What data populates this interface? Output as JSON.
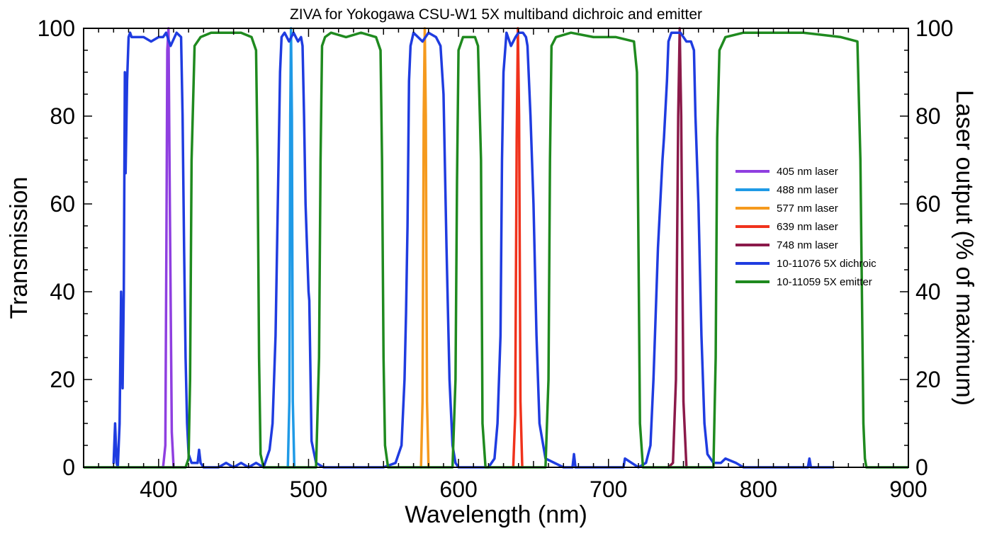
{
  "chart_data": {
    "type": "line",
    "title": "ZIVA for Yokogawa CSU-W1 5X multiband dichroic and emitter",
    "xlabel": "Wavelength (nm)",
    "ylabel": "Transmission",
    "y2label": "Laser output (% of maximum)",
    "xlim": [
      350,
      900
    ],
    "ylim": [
      0,
      100
    ],
    "y2lim": [
      0,
      100
    ],
    "x_ticks": [
      400,
      500,
      600,
      700,
      800,
      900
    ],
    "y_ticks": [
      0,
      20,
      40,
      60,
      80,
      100
    ],
    "y2_ticks": [
      0,
      20,
      40,
      60,
      80,
      100
    ],
    "grid": false,
    "legend_position": "right",
    "series": [
      {
        "name": "405 nm laser",
        "axis": "right",
        "color": "#8f3fe0",
        "x": [
          403,
          404.5,
          405.2,
          405.8,
          406.6,
          407.5,
          408.8,
          410
        ],
        "y": [
          0,
          5,
          50,
          95,
          100,
          60,
          8,
          0
        ]
      },
      {
        "name": "488 nm laser",
        "axis": "right",
        "color": "#1f9ae6",
        "x": [
          486.2,
          487.2,
          487.8,
          488.3,
          488.9,
          489.5,
          490.5
        ],
        "y": [
          0,
          15,
          80,
          100,
          80,
          15,
          0
        ]
      },
      {
        "name": "577 nm laser",
        "axis": "right",
        "color": "#f59a1e",
        "x": [
          575,
          576,
          576.8,
          577.5,
          578.2,
          579,
          580
        ],
        "y": [
          0,
          15,
          80,
          100,
          80,
          15,
          0
        ]
      },
      {
        "name": "639 nm laser",
        "axis": "right",
        "color": "#f0321c",
        "x": [
          636.5,
          637.8,
          638.8,
          639.6,
          640.4,
          641.3,
          642.5
        ],
        "y": [
          0,
          12,
          75,
          100,
          80,
          15,
          0
        ]
      },
      {
        "name": "748 nm laser",
        "axis": "right",
        "color": "#8b1a4a",
        "x": [
          740,
          743,
          745,
          746.5,
          747.5,
          748.5,
          750,
          752
        ],
        "y": [
          0,
          1,
          20,
          80,
          100,
          80,
          15,
          0
        ]
      },
      {
        "name": "10-11076 5X dichroic",
        "axis": "left",
        "color": "#1f3ce0",
        "x": [
          370,
          371,
          372,
          372.8,
          374,
          375,
          376,
          376.8,
          377.5,
          378,
          379,
          380,
          381,
          382,
          385,
          390,
          395,
          400,
          403,
          405,
          408,
          412,
          415,
          416,
          417,
          418,
          419,
          420,
          422,
          426,
          427,
          428,
          430,
          440,
          445,
          450,
          455,
          460,
          465,
          470,
          474,
          476,
          478,
          480,
          481,
          482,
          484,
          487,
          490,
          493,
          495,
          496,
          497,
          498,
          500,
          500.5,
          502,
          505,
          510,
          530,
          550,
          558,
          562,
          564,
          565,
          566,
          567,
          568,
          570,
          573,
          576,
          580,
          585,
          588,
          590,
          592,
          594,
          596,
          598,
          600,
          610,
          620,
          624,
          626,
          628,
          629,
          630,
          632,
          635,
          638,
          640,
          643,
          645,
          646,
          648,
          650,
          652,
          654,
          658,
          670,
          676,
          677,
          678,
          700,
          710,
          711,
          720,
          725,
          728,
          730,
          733,
          736,
          737,
          739,
          740,
          742,
          745,
          748,
          752,
          755,
          757,
          758,
          760,
          762,
          764,
          766,
          770,
          775,
          778,
          785,
          790,
          800,
          820,
          833,
          834,
          835,
          850
        ],
        "y": [
          1,
          10,
          1,
          0,
          10,
          40,
          18,
          40,
          90,
          67,
          88,
          98,
          99,
          98,
          98,
          98,
          97,
          98,
          98,
          99,
          96,
          99,
          98,
          80,
          50,
          25,
          10,
          3,
          1,
          1,
          4,
          1,
          0,
          0,
          1,
          0,
          1,
          0,
          1,
          0,
          4,
          10,
          30,
          70,
          90,
          98,
          99,
          97,
          99,
          97,
          98,
          96,
          80,
          60,
          40,
          38,
          6,
          1,
          0,
          0,
          0,
          1,
          5,
          20,
          35,
          55,
          88,
          96,
          99,
          98,
          97,
          99,
          98,
          96,
          85,
          50,
          20,
          5,
          1,
          0,
          0,
          0,
          2,
          10,
          30,
          70,
          90,
          99,
          96,
          98,
          99,
          99,
          98,
          96,
          80,
          60,
          30,
          10,
          2,
          0,
          0,
          3,
          0,
          0,
          0,
          2,
          0,
          1,
          5,
          20,
          50,
          70,
          75,
          88,
          97,
          99,
          99,
          99,
          97,
          97,
          95,
          80,
          60,
          30,
          10,
          3,
          1,
          1,
          2,
          1,
          0,
          0,
          0,
          0,
          2,
          0,
          0
        ]
      },
      {
        "name": "10-11059 5X emitter",
        "axis": "left",
        "color": "#1f8a1f",
        "x": [
          350,
          418,
          420,
          421,
          422,
          424,
          428,
          435,
          445,
          455,
          462,
          465,
          466,
          467,
          468,
          470,
          473,
          505,
          507,
          508,
          509,
          511,
          515,
          525,
          535,
          545,
          548,
          549,
          550,
          551,
          553,
          556,
          596,
          598,
          599,
          600,
          603,
          607,
          611,
          613,
          615,
          616,
          618,
          658,
          660,
          661,
          662,
          665,
          675,
          690,
          705,
          717,
          719,
          720,
          721,
          723,
          726,
          770,
          771.5,
          772.5,
          774,
          778,
          790,
          810,
          830,
          855,
          866,
          868,
          869,
          870,
          871,
          872,
          875,
          900
        ],
        "y": [
          0,
          0,
          2,
          20,
          70,
          96,
          98,
          99,
          99,
          99,
          98,
          95,
          70,
          25,
          3,
          0,
          0,
          0,
          25,
          70,
          96,
          98,
          99,
          98,
          99,
          98,
          95,
          70,
          25,
          5,
          0,
          0,
          0,
          20,
          65,
          95,
          98,
          98,
          98,
          96,
          70,
          10,
          0,
          0,
          20,
          70,
          96,
          98,
          99,
          98,
          98,
          97,
          90,
          50,
          10,
          0,
          0,
          0,
          25,
          75,
          95,
          98,
          99,
          99,
          99,
          98,
          97,
          70,
          40,
          10,
          2,
          0,
          0,
          0
        ]
      }
    ]
  }
}
